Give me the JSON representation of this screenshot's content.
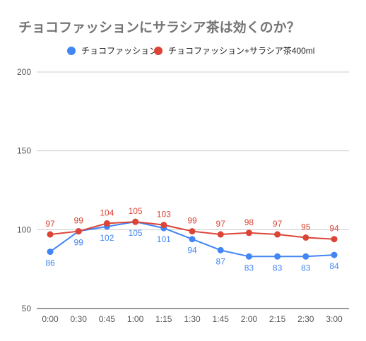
{
  "chart_data": {
    "type": "line",
    "title": "チョコファッションにサラシア茶は効くのか？",
    "categories": [
      "0:00",
      "0:30",
      "0:45",
      "1:00",
      "1:15",
      "1:30",
      "1:45",
      "2:00",
      "2:15",
      "2:30",
      "3:00"
    ],
    "series": [
      {
        "name": "チョコファッション",
        "color": "#4285f4",
        "values": [
          86,
          99,
          102,
          105,
          101,
          94,
          87,
          83,
          83,
          83,
          84
        ],
        "labels": [
          "86",
          "99",
          "102",
          "105",
          "101",
          "94",
          "87",
          "83",
          "83",
          "83",
          "84"
        ]
      },
      {
        "name": "チョコファッション+サラシア茶400ml",
        "color": "#db4437",
        "values": [
          97,
          99,
          104,
          105,
          103,
          99,
          97,
          98,
          97,
          95,
          94
        ],
        "labels": [
          "97",
          "99",
          "104",
          "105",
          "103",
          "99",
          "97",
          "98",
          "97",
          "95",
          "94"
        ]
      }
    ],
    "ylim": [
      50,
      200
    ],
    "yticks": [
      50,
      100,
      150,
      200
    ],
    "ytick_labels": [
      "50",
      "100",
      "150",
      "200"
    ],
    "grid": true,
    "legend": "top"
  }
}
